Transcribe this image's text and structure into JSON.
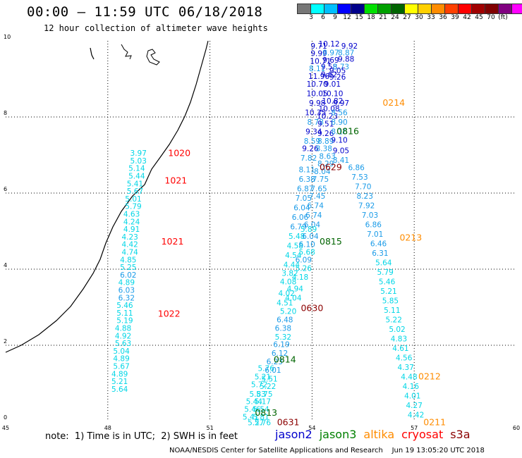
{
  "header": {
    "title": "00:00 – 11:59 UTC 06/18/2018",
    "subtitle": "12 hour collection of altimeter wave heights"
  },
  "colorbar": {
    "colors": [
      "#777777",
      "#00ffff",
      "#00bfff",
      "#0000ff",
      "#00008b",
      "#00e000",
      "#00a000",
      "#006400",
      "#ffff00",
      "#ffd000",
      "#ff8c00",
      "#ff4000",
      "#ff0000",
      "#a00000",
      "#800000",
      "#800080",
      "#ff00ff",
      "#000000"
    ],
    "labels": [
      "3",
      "6",
      "9",
      "12",
      "15",
      "18",
      "21",
      "24",
      "27",
      "30",
      "33",
      "36",
      "39",
      "42",
      "45",
      "70",
      "(ft)"
    ]
  },
  "footer": {
    "note": "note:  1) Time is in UTC;  2) SWH is in feet",
    "legend": [
      {
        "name": "jason2",
        "color": "#0000cc"
      },
      {
        "name": "jason3",
        "color": "#008000"
      },
      {
        "name": "altika",
        "color": "#ff8c00"
      },
      {
        "name": "cryosat",
        "color": "#ff0000"
      },
      {
        "name": "s3a",
        "color": "#8b0000"
      }
    ],
    "credit": "NOAA/NESDIS Center for Satellite Applications and Research    Jun 19 13:05:20 UTC 2018"
  },
  "chart_data": {
    "type": "scatter",
    "title": "00:00 – 11:59 UTC 06/18/2018",
    "xlim": [
      45,
      60
    ],
    "ylim": [
      0,
      10
    ],
    "xticks": [
      "45",
      "48",
      "51",
      "54",
      "57",
      "60"
    ],
    "yticks": [
      "0",
      "2",
      "4",
      "6",
      "8",
      "10"
    ],
    "grid": true,
    "series": [
      {
        "name": "cryosat",
        "color": "#ff0000",
        "pass_labels": [
          {
            "text": "1020",
            "x": 50.1,
            "y": 6.97
          },
          {
            "text": "1021",
            "x": 50.0,
            "y": 6.25
          },
          {
            "text": "1021",
            "x": 49.9,
            "y": 4.65
          },
          {
            "text": "1022",
            "x": 49.8,
            "y": 2.75
          }
        ],
        "points": [
          {
            "x": 48.9,
            "y": 6.98,
            "v": "3.97"
          },
          {
            "x": 48.9,
            "y": 6.78,
            "v": "5.03"
          },
          {
            "x": 48.85,
            "y": 6.58,
            "v": "5.14"
          },
          {
            "x": 48.85,
            "y": 6.38,
            "v": "5.44"
          },
          {
            "x": 48.8,
            "y": 6.18,
            "v": "5.41"
          },
          {
            "x": 48.8,
            "y": 5.98,
            "v": "5.67"
          },
          {
            "x": 48.75,
            "y": 5.78,
            "v": "5.01"
          },
          {
            "x": 48.75,
            "y": 5.58,
            "v": "5.79"
          },
          {
            "x": 48.7,
            "y": 5.38,
            "v": "4.63"
          },
          {
            "x": 48.7,
            "y": 5.18,
            "v": "4.24"
          },
          {
            "x": 48.7,
            "y": 4.98,
            "v": "4.91"
          },
          {
            "x": 48.65,
            "y": 4.78,
            "v": "4.23"
          },
          {
            "x": 48.65,
            "y": 4.58,
            "v": "4.42"
          },
          {
            "x": 48.65,
            "y": 4.38,
            "v": "4.74"
          },
          {
            "x": 48.6,
            "y": 4.18,
            "v": "4.85"
          },
          {
            "x": 48.6,
            "y": 3.98,
            "v": "5.25"
          },
          {
            "x": 48.6,
            "y": 3.78,
            "v": "6.02"
          },
          {
            "x": 48.55,
            "y": 3.58,
            "v": "4.89"
          },
          {
            "x": 48.55,
            "y": 3.38,
            "v": "6.03"
          },
          {
            "x": 48.55,
            "y": 3.18,
            "v": "6.32"
          },
          {
            "x": 48.5,
            "y": 2.98,
            "v": "5.46"
          },
          {
            "x": 48.5,
            "y": 2.78,
            "v": "5.11"
          },
          {
            "x": 48.5,
            "y": 2.58,
            "v": "5.19"
          },
          {
            "x": 48.45,
            "y": 2.38,
            "v": "4.88"
          },
          {
            "x": 48.45,
            "y": 2.18,
            "v": "4.92"
          },
          {
            "x": 48.45,
            "y": 1.98,
            "v": "5.63"
          },
          {
            "x": 48.4,
            "y": 1.78,
            "v": "5.04"
          },
          {
            "x": 48.4,
            "y": 1.58,
            "v": "4.89"
          },
          {
            "x": 48.4,
            "y": 1.38,
            "v": "5.67"
          },
          {
            "x": 48.35,
            "y": 1.18,
            "v": "4.89"
          },
          {
            "x": 48.35,
            "y": 0.98,
            "v": "5.21"
          },
          {
            "x": 48.35,
            "y": 0.78,
            "v": "5.64"
          }
        ]
      },
      {
        "name": "jason2",
        "color": "#0000cc",
        "pass_labels": [],
        "points": [
          {
            "x": 54.2,
            "y": 9.8,
            "v": "9.71"
          },
          {
            "x": 54.5,
            "y": 9.85,
            "v": "10.12"
          },
          {
            "x": 55.1,
            "y": 9.8,
            "v": "9.92"
          },
          {
            "x": 54.2,
            "y": 9.6,
            "v": "9.99"
          },
          {
            "x": 54.55,
            "y": 9.62,
            "v": "8.97"
          },
          {
            "x": 55.0,
            "y": 9.62,
            "v": "8.87"
          },
          {
            "x": 54.25,
            "y": 9.4,
            "v": "10.71"
          },
          {
            "x": 54.55,
            "y": 9.43,
            "v": "9.69"
          },
          {
            "x": 55.0,
            "y": 9.45,
            "v": "9.88"
          },
          {
            "x": 54.15,
            "y": 9.2,
            "v": "8.11"
          },
          {
            "x": 54.5,
            "y": 9.25,
            "v": "9.58"
          },
          {
            "x": 54.85,
            "y": 9.25,
            "v": "8.73"
          },
          {
            "x": 54.75,
            "y": 9.15,
            "v": "9.05"
          },
          {
            "x": 54.2,
            "y": 9.0,
            "v": "11.96"
          },
          {
            "x": 54.5,
            "y": 9.05,
            "v": "9.62"
          },
          {
            "x": 54.75,
            "y": 8.98,
            "v": "9.26"
          },
          {
            "x": 54.15,
            "y": 8.8,
            "v": "10.70"
          },
          {
            "x": 54.6,
            "y": 8.8,
            "v": "9.01"
          },
          {
            "x": 54.15,
            "y": 8.55,
            "v": "10.05"
          },
          {
            "x": 54.6,
            "y": 8.55,
            "v": "10.10"
          },
          {
            "x": 54.15,
            "y": 8.3,
            "v": "9.98"
          },
          {
            "x": 54.6,
            "y": 8.35,
            "v": "10.82"
          },
          {
            "x": 54.85,
            "y": 8.3,
            "v": "9.97"
          },
          {
            "x": 54.5,
            "y": 8.15,
            "v": "10.08"
          },
          {
            "x": 54.1,
            "y": 8.05,
            "v": "10.35"
          },
          {
            "x": 54.45,
            "y": 7.95,
            "v": "10.23"
          },
          {
            "x": 54.8,
            "y": 8.05,
            "v": "8.56"
          },
          {
            "x": 54.1,
            "y": 7.8,
            "v": "8.78"
          },
          {
            "x": 54.4,
            "y": 7.75,
            "v": "9.51"
          },
          {
            "x": 54.8,
            "y": 7.8,
            "v": "8.90"
          },
          {
            "x": 54.05,
            "y": 7.55,
            "v": "9.34"
          },
          {
            "x": 54.4,
            "y": 7.5,
            "v": "9.26"
          },
          {
            "x": 54.8,
            "y": 7.55,
            "v": "8.16"
          },
          {
            "x": 54.0,
            "y": 7.3,
            "v": "8.59"
          },
          {
            "x": 54.4,
            "y": 7.3,
            "v": "8.89"
          },
          {
            "x": 54.8,
            "y": 7.32,
            "v": "9.10"
          },
          {
            "x": 53.95,
            "y": 7.1,
            "v": "9.26"
          },
          {
            "x": 54.35,
            "y": 7.1,
            "v": "8.38"
          },
          {
            "x": 54.85,
            "y": 7.05,
            "v": "9.05"
          },
          {
            "x": 54.45,
            "y": 6.9,
            "v": "8.63"
          },
          {
            "x": 53.9,
            "y": 6.85,
            "v": "7.82"
          },
          {
            "x": 54.85,
            "y": 6.8,
            "v": "8.41"
          }
        ]
      },
      {
        "name": "jason3",
        "color": "#006400",
        "pass_labels": [
          {
            "text": "0816",
            "x": 55.05,
            "y": 7.55
          },
          {
            "text": "0815",
            "x": 54.55,
            "y": 4.65
          },
          {
            "text": "0814",
            "x": 53.2,
            "y": 1.55
          },
          {
            "text": "0813",
            "x": 52.65,
            "y": 0.15
          }
        ],
        "points": [
          {
            "x": 54.4,
            "y": 6.7,
            "v": "8.29"
          },
          {
            "x": 53.85,
            "y": 6.55,
            "v": "8.11"
          },
          {
            "x": 54.3,
            "y": 6.5,
            "v": "8.04"
          },
          {
            "x": 53.85,
            "y": 6.3,
            "v": "6.38"
          },
          {
            "x": 54.25,
            "y": 6.3,
            "v": "7.75"
          },
          {
            "x": 53.8,
            "y": 6.05,
            "v": "6.87"
          },
          {
            "x": 54.2,
            "y": 6.05,
            "v": "7.65"
          },
          {
            "x": 53.75,
            "y": 5.8,
            "v": "7.05"
          },
          {
            "x": 54.15,
            "y": 5.85,
            "v": "7.45"
          },
          {
            "x": 53.7,
            "y": 5.55,
            "v": "6.04"
          },
          {
            "x": 54.1,
            "y": 5.6,
            "v": "6.74"
          },
          {
            "x": 53.65,
            "y": 5.3,
            "v": "6.06"
          },
          {
            "x": 54.05,
            "y": 5.35,
            "v": "6.74"
          },
          {
            "x": 53.6,
            "y": 5.05,
            "v": "6.79"
          },
          {
            "x": 54.0,
            "y": 5.1,
            "v": "6.04"
          },
          {
            "x": 53.9,
            "y": 4.98,
            "v": "5.89"
          },
          {
            "x": 53.55,
            "y": 4.8,
            "v": "5.48"
          },
          {
            "x": 53.95,
            "y": 4.8,
            "v": "6.04"
          },
          {
            "x": 53.5,
            "y": 4.55,
            "v": "4.58"
          },
          {
            "x": 53.85,
            "y": 4.58,
            "v": "6.10"
          },
          {
            "x": 53.85,
            "y": 4.38,
            "v": "5.68"
          },
          {
            "x": 53.45,
            "y": 4.3,
            "v": "4.54"
          },
          {
            "x": 53.75,
            "y": 4.18,
            "v": "6.09"
          },
          {
            "x": 53.4,
            "y": 4.05,
            "v": "4.44"
          },
          {
            "x": 53.75,
            "y": 3.95,
            "v": "5.26"
          },
          {
            "x": 53.35,
            "y": 3.82,
            "v": "3.82"
          },
          {
            "x": 53.65,
            "y": 3.72,
            "v": "4.18"
          },
          {
            "x": 53.3,
            "y": 3.6,
            "v": "4.08"
          },
          {
            "x": 53.5,
            "y": 3.42,
            "v": "4.94"
          },
          {
            "x": 53.25,
            "y": 3.3,
            "v": "4.02"
          },
          {
            "x": 53.45,
            "y": 3.18,
            "v": "4.04"
          },
          {
            "x": 53.2,
            "y": 3.05,
            "v": "4.51"
          },
          {
            "x": 53.3,
            "y": 2.82,
            "v": "5.20"
          },
          {
            "x": 53.2,
            "y": 2.6,
            "v": "6.48"
          },
          {
            "x": 53.15,
            "y": 2.38,
            "v": "6.38"
          },
          {
            "x": 53.15,
            "y": 2.15,
            "v": "5.32"
          },
          {
            "x": 53.1,
            "y": 1.95,
            "v": "6.19"
          },
          {
            "x": 53.05,
            "y": 1.72,
            "v": "6.12"
          },
          {
            "x": 52.9,
            "y": 1.5,
            "v": "6.23"
          },
          {
            "x": 52.65,
            "y": 1.32,
            "v": "5.76"
          },
          {
            "x": 52.85,
            "y": 1.28,
            "v": "6.01"
          },
          {
            "x": 52.55,
            "y": 1.1,
            "v": "5.21"
          },
          {
            "x": 52.75,
            "y": 1.05,
            "v": "5.51"
          },
          {
            "x": 52.45,
            "y": 0.9,
            "v": "5.72"
          },
          {
            "x": 52.7,
            "y": 0.85,
            "v": "5.22"
          },
          {
            "x": 52.4,
            "y": 0.65,
            "v": "5.83"
          },
          {
            "x": 52.6,
            "y": 0.65,
            "v": "5.75"
          },
          {
            "x": 52.3,
            "y": 0.45,
            "v": "5.44"
          },
          {
            "x": 52.55,
            "y": 0.45,
            "v": "5.17"
          },
          {
            "x": 52.25,
            "y": 0.25,
            "v": "5.46"
          },
          {
            "x": 52.5,
            "y": 0.25,
            "v": "5.54"
          },
          {
            "x": 52.2,
            "y": 0.05,
            "v": "5.41"
          },
          {
            "x": 52.5,
            "y": 0.05,
            "v": "5.81"
          },
          {
            "x": 52.35,
            "y": -0.1,
            "v": "5.27"
          },
          {
            "x": 52.55,
            "y": -0.1,
            "v": "5.76"
          }
        ]
      },
      {
        "name": "altika",
        "color": "#ff8c00",
        "pass_labels": [
          {
            "text": "0214",
            "x": 56.4,
            "y": 8.3
          },
          {
            "text": "0213",
            "x": 56.9,
            "y": 4.75
          },
          {
            "text": "0212",
            "x": 57.45,
            "y": 1.1
          },
          {
            "text": "0211",
            "x": 57.6,
            "y": -0.1
          }
        ],
        "points": [
          {
            "x": 55.3,
            "y": 6.6,
            "v": "6.86"
          },
          {
            "x": 55.4,
            "y": 6.35,
            "v": "7.53"
          },
          {
            "x": 55.5,
            "y": 6.1,
            "v": "7.70"
          },
          {
            "x": 55.55,
            "y": 5.85,
            "v": "8.23"
          },
          {
            "x": 55.6,
            "y": 5.6,
            "v": "7.92"
          },
          {
            "x": 55.7,
            "y": 5.35,
            "v": "7.03"
          },
          {
            "x": 55.8,
            "y": 5.1,
            "v": "6.86"
          },
          {
            "x": 55.85,
            "y": 4.85,
            "v": "7.01"
          },
          {
            "x": 55.95,
            "y": 4.6,
            "v": "6.46"
          },
          {
            "x": 56.0,
            "y": 4.35,
            "v": "6.31"
          },
          {
            "x": 56.1,
            "y": 4.1,
            "v": "5.64"
          },
          {
            "x": 56.15,
            "y": 3.85,
            "v": "5.79"
          },
          {
            "x": 56.2,
            "y": 3.6,
            "v": "5.46"
          },
          {
            "x": 56.25,
            "y": 3.35,
            "v": "5.21"
          },
          {
            "x": 56.3,
            "y": 3.1,
            "v": "5.85"
          },
          {
            "x": 56.35,
            "y": 2.85,
            "v": "5.11"
          },
          {
            "x": 56.4,
            "y": 2.6,
            "v": "5.22"
          },
          {
            "x": 56.5,
            "y": 2.35,
            "v": "5.02"
          },
          {
            "x": 56.55,
            "y": 2.1,
            "v": "4.83"
          },
          {
            "x": 56.6,
            "y": 1.85,
            "v": "4.61"
          },
          {
            "x": 56.7,
            "y": 1.6,
            "v": "4.56"
          },
          {
            "x": 56.75,
            "y": 1.35,
            "v": "4.37"
          },
          {
            "x": 56.85,
            "y": 1.1,
            "v": "4.48"
          },
          {
            "x": 56.9,
            "y": 0.85,
            "v": "4.16"
          },
          {
            "x": 56.95,
            "y": 0.6,
            "v": "4.01"
          },
          {
            "x": 57.0,
            "y": 0.35,
            "v": "4.27"
          },
          {
            "x": 57.05,
            "y": 0.1,
            "v": "4.42"
          }
        ]
      },
      {
        "name": "s3a",
        "color": "#8b0000",
        "pass_labels": [
          {
            "text": "0629",
            "x": 54.55,
            "y": 6.6
          },
          {
            "text": "0630",
            "x": 54.0,
            "y": 2.9
          },
          {
            "text": "0631",
            "x": 53.3,
            "y": -0.1
          }
        ],
        "points": []
      }
    ]
  }
}
